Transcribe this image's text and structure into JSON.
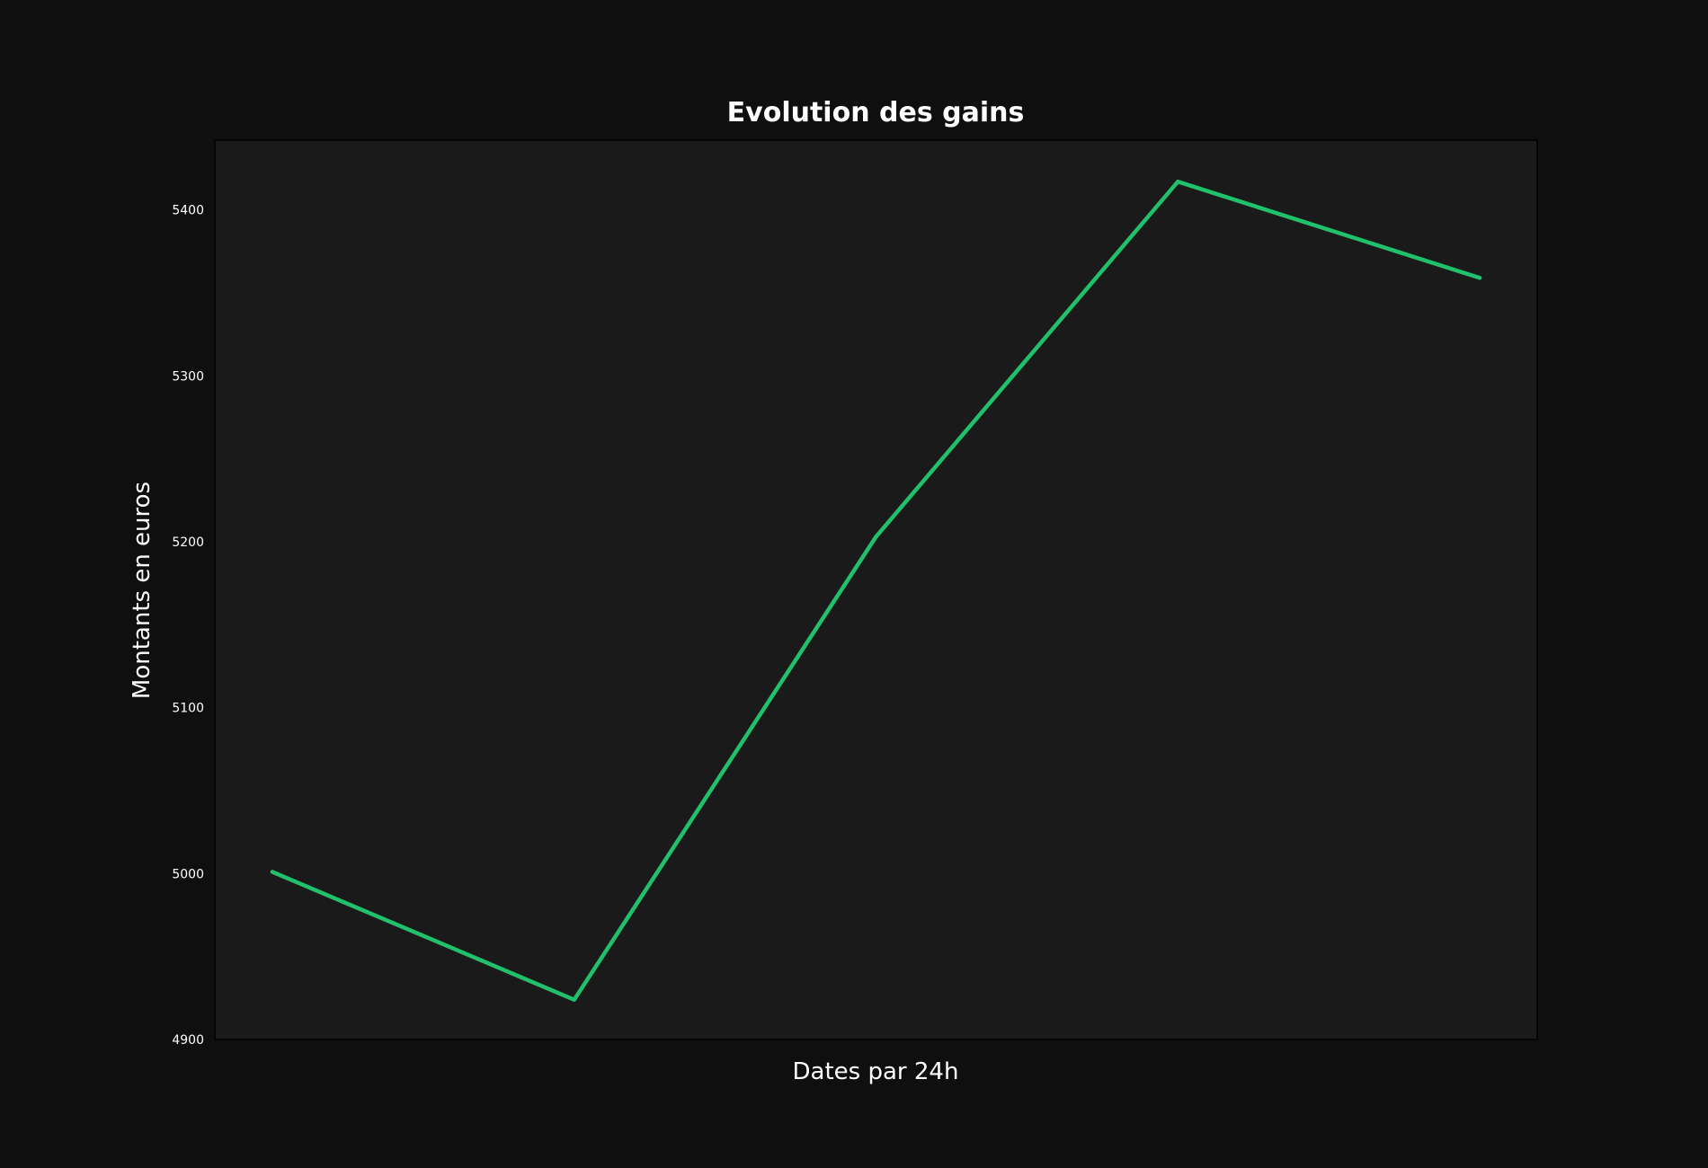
{
  "chart_data": {
    "type": "line",
    "title": "Evolution des gains",
    "xlabel": "Dates par 24h",
    "ylabel": "Montants en euros",
    "x": [
      0,
      1,
      2,
      3,
      4
    ],
    "series": [
      {
        "values": [
          5001,
          4924,
          5203,
          5417,
          5359
        ]
      }
    ],
    "ylim": [
      4900,
      5442
    ],
    "yticks": [
      4900,
      5000,
      5100,
      5200,
      5300,
      5400
    ],
    "show_xticks": false,
    "grid": false,
    "legend": "none",
    "colors": {
      "background": "#0f0f0f",
      "plot_background": "#1a1a1a",
      "line": "#21c06b",
      "text": "#ffffff",
      "frame": "#000000"
    }
  }
}
